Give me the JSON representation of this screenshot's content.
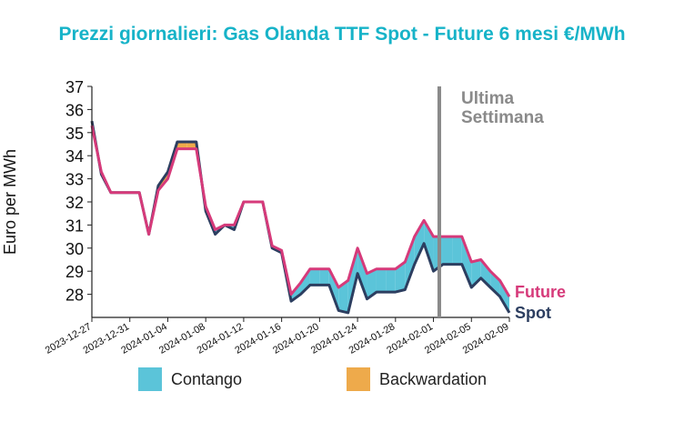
{
  "chart_data": {
    "type": "area",
    "title": "Prezzi giornalieri: Gas Olanda TTF Spot - Future 6 mesi €/MWh",
    "ylabel": "Euro per MWh",
    "xlabel": "",
    "ylim": [
      27,
      37
    ],
    "yticks": [
      28,
      29,
      30,
      31,
      32,
      33,
      34,
      35,
      36,
      37
    ],
    "x_tick_labels": [
      "2023-12-27",
      "2023-12-31",
      "2024-01-04",
      "2024-01-08",
      "2024-01-12",
      "2024-01-16",
      "2024-01-20",
      "2024-01-24",
      "2024-01-28",
      "2024-02-01",
      "2024-02-05",
      "2024-02-09"
    ],
    "x": [
      "2023-12-27",
      "2023-12-28",
      "2023-12-29",
      "2023-12-30",
      "2023-12-31",
      "2024-01-01",
      "2024-01-02",
      "2024-01-03",
      "2024-01-04",
      "2024-01-05",
      "2024-01-06",
      "2024-01-07",
      "2024-01-08",
      "2024-01-09",
      "2024-01-10",
      "2024-01-11",
      "2024-01-12",
      "2024-01-13",
      "2024-01-14",
      "2024-01-15",
      "2024-01-16",
      "2024-01-17",
      "2024-01-18",
      "2024-01-19",
      "2024-01-20",
      "2024-01-21",
      "2024-01-22",
      "2024-01-23",
      "2024-01-24",
      "2024-01-25",
      "2024-01-26",
      "2024-01-27",
      "2024-01-28",
      "2024-01-29",
      "2024-01-30",
      "2024-01-31",
      "2024-02-01",
      "2024-02-02",
      "2024-02-03",
      "2024-02-04",
      "2024-02-05",
      "2024-02-06",
      "2024-02-07",
      "2024-02-08",
      "2024-02-09"
    ],
    "series": [
      {
        "name": "Spot",
        "color": "#2c3e60",
        "values": [
          35.5,
          33.2,
          32.4,
          32.4,
          32.4,
          32.4,
          30.6,
          32.7,
          33.3,
          34.6,
          34.6,
          34.6,
          31.6,
          30.6,
          31.0,
          30.8,
          32.0,
          32.0,
          32.0,
          30.0,
          29.8,
          27.7,
          28.0,
          28.4,
          28.4,
          28.4,
          27.3,
          27.2,
          28.9,
          27.8,
          28.1,
          28.1,
          28.1,
          28.2,
          29.3,
          30.2,
          29.0,
          29.3,
          29.3,
          29.3,
          28.3,
          28.7,
          28.3,
          27.9,
          27.2
        ]
      },
      {
        "name": "Future",
        "color": "#d63a7a",
        "values": [
          35.3,
          33.3,
          32.4,
          32.4,
          32.4,
          32.4,
          30.6,
          32.5,
          33.0,
          34.3,
          34.3,
          34.3,
          31.8,
          30.8,
          31.0,
          31.0,
          32.0,
          32.0,
          32.0,
          30.1,
          29.9,
          28.0,
          28.5,
          29.1,
          29.1,
          29.1,
          28.3,
          28.6,
          30.0,
          28.9,
          29.1,
          29.1,
          29.1,
          29.4,
          30.5,
          31.2,
          30.5,
          30.5,
          30.5,
          30.5,
          29.4,
          29.5,
          29.0,
          28.6,
          27.9
        ]
      }
    ],
    "fill_labels": [
      "Contango",
      "Backwardation"
    ],
    "fill_colors": {
      "contango": "#5bc4d9",
      "backwardation": "#eeaa4b"
    },
    "annotations": [
      {
        "text_lines": [
          "Ultima",
          "Settimana"
        ],
        "x": "2024-02-02",
        "color": "#8a8a8a"
      }
    ],
    "end_labels": {
      "future": "Future",
      "spot": "Spot"
    },
    "legend": {
      "position": "bottom",
      "items": [
        "Contango",
        "Backwardation"
      ]
    },
    "title_color": "#17b3c8",
    "grid": false
  }
}
